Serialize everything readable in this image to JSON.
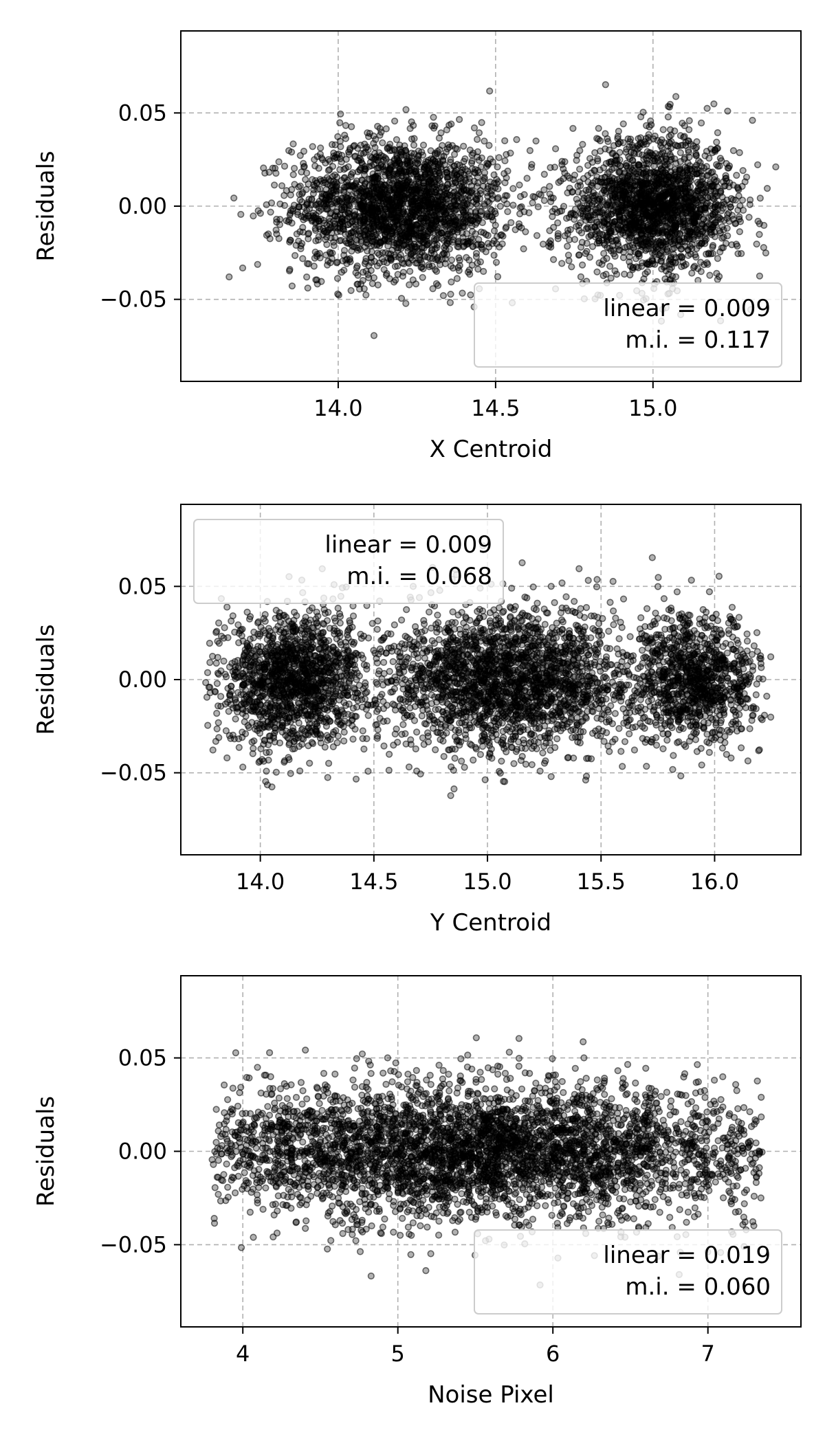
{
  "chart_data": [
    {
      "type": "scatter",
      "xlabel": "X Centroid",
      "ylabel": "Residuals",
      "xlim": [
        13.5,
        15.47
      ],
      "ylim": [
        -0.094,
        0.094
      ],
      "xticks": [
        14.0,
        14.5,
        15.0
      ],
      "xtick_labels": [
        "14.0",
        "14.5",
        "15.0"
      ],
      "yticks": [
        -0.05,
        0.0,
        0.05
      ],
      "ytick_labels": [
        "−0.05",
        "0.00",
        "0.05"
      ],
      "grid": true,
      "legend_placement": "lower-right",
      "legend": [
        "linear = 0.009",
        "m.i. = 0.117"
      ],
      "clusters": [
        {
          "x_center": 14.2,
          "x_sd": 0.17,
          "x_range": [
            13.6,
            14.8
          ],
          "y_sd": 0.018,
          "n": 2200
        },
        {
          "x_center": 15.0,
          "x_sd": 0.13,
          "x_range": [
            14.6,
            15.4
          ],
          "y_sd": 0.018,
          "n": 1900
        }
      ],
      "point_color": "#000000",
      "point_alpha": 0.3
    },
    {
      "type": "scatter",
      "xlabel": "Y Centroid",
      "ylabel": "Residuals",
      "xlim": [
        13.65,
        16.38
      ],
      "ylim": [
        -0.094,
        0.094
      ],
      "xticks": [
        14.0,
        14.5,
        15.0,
        15.5,
        16.0
      ],
      "xtick_labels": [
        "14.0",
        "14.5",
        "15.0",
        "15.5",
        "16.0"
      ],
      "yticks": [
        -0.05,
        0.0,
        0.05
      ],
      "ytick_labels": [
        "−0.05",
        "0.00",
        "0.05"
      ],
      "grid": true,
      "legend_placement": "upper-left",
      "legend": [
        "linear = 0.009",
        "m.i. = 0.068"
      ],
      "clusters": [
        {
          "x_center": 14.15,
          "x_sd": 0.17,
          "x_range": [
            13.75,
            14.6
          ],
          "y_sd": 0.018,
          "n": 1500
        },
        {
          "x_center": 15.1,
          "x_sd": 0.28,
          "x_range": [
            14.5,
            15.6
          ],
          "y_sd": 0.019,
          "n": 2200
        },
        {
          "x_center": 15.9,
          "x_sd": 0.15,
          "x_range": [
            15.55,
            16.25
          ],
          "y_sd": 0.017,
          "n": 1100
        }
      ],
      "point_color": "#000000",
      "point_alpha": 0.3
    },
    {
      "type": "scatter",
      "xlabel": "Noise Pixel",
      "ylabel": "Residuals",
      "xlim": [
        3.6,
        7.6
      ],
      "ylim": [
        -0.094,
        0.094
      ],
      "xticks": [
        4,
        5,
        6,
        7
      ],
      "xtick_labels": [
        "4",
        "5",
        "6",
        "7"
      ],
      "yticks": [
        -0.05,
        0.0,
        0.05
      ],
      "ytick_labels": [
        "−0.05",
        "0.00",
        "0.05"
      ],
      "grid": true,
      "legend_placement": "lower-right",
      "legend": [
        "linear = 0.019",
        "m.i. = 0.060"
      ],
      "clusters": [
        {
          "x_center": 5.5,
          "x_sd": 1.0,
          "x_range": [
            3.8,
            7.35
          ],
          "y_sd": 0.018,
          "n": 4200
        }
      ],
      "point_color": "#000000",
      "point_alpha": 0.3
    }
  ]
}
